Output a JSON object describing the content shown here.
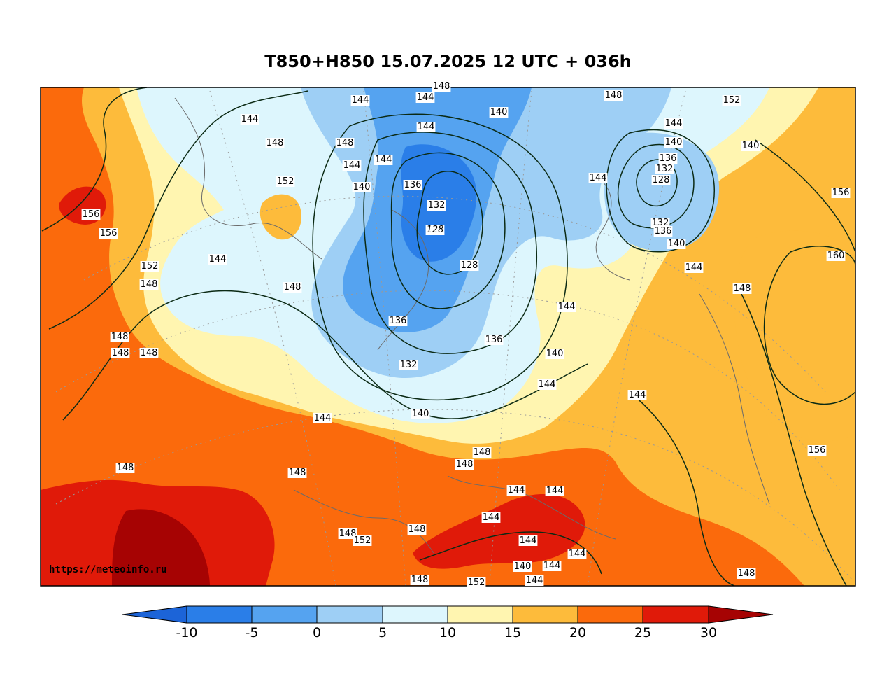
{
  "title": "T850+H850 15.07.2025 12 UTC + 036h",
  "watermark": "https://meteoinfo.ru",
  "colorbar": {
    "ticks": [
      "-10",
      "-5",
      "0",
      "5",
      "10",
      "15",
      "20",
      "25",
      "30"
    ],
    "colors": {
      "below_-10": "#1c64d8",
      "-10_-5": "#2a7ee8",
      "-5_0": "#55a3f0",
      "0_5": "#9ecff5",
      "5_10": "#ddf6fd",
      "10_15": "#fff5b0",
      "15_20": "#fdbb3b",
      "20_25": "#fb6a0c",
      "25_30": "#e01a09",
      "above_30": "#a60303"
    }
  },
  "contour_labels": [
    "144",
    "140",
    "148",
    "152",
    "156",
    "160",
    "136",
    "132",
    "128"
  ],
  "labels": {
    "l1": "144",
    "l2": "144",
    "l3": "140",
    "l4": "148",
    "l5": "152",
    "l6": "144",
    "l7": "148",
    "l8": "144",
    "l9": "144",
    "l10": "144",
    "l11": "148",
    "l12": "152",
    "l13": "156",
    "l14": "156",
    "l15": "152",
    "l16": "148",
    "l17": "144",
    "l18": "148",
    "l19": "148",
    "l20": "148",
    "l21": "148",
    "l22": "140",
    "l23": "136",
    "l24": "132",
    "l25": "128",
    "l26": "128",
    "l27": "136",
    "l28": "136",
    "l29": "132",
    "l30": "140",
    "l31": "144",
    "l32": "140",
    "l33": "144",
    "l34": "144",
    "l35": "144",
    "l36": "140",
    "l37": "136",
    "l38": "132",
    "l39": "128",
    "l40": "132",
    "l41": "136",
    "l42": "140",
    "l43": "144",
    "l44": "148",
    "l45": "140",
    "l46": "156",
    "l47": "160",
    "l48": "148",
    "l49": "144",
    "l50": "156",
    "l51": "148",
    "l52": "148",
    "l53": "148",
    "l54": "144",
    "l55": "144",
    "l56": "144",
    "l57": "144",
    "l58": "144",
    "l59": "140",
    "l60": "144",
    "l61": "148",
    "l62": "148",
    "l63": "148",
    "l64": "152",
    "l65": "148",
    "l66": "152",
    "l67": "144",
    "l68": "148",
    "l69": "144"
  }
}
